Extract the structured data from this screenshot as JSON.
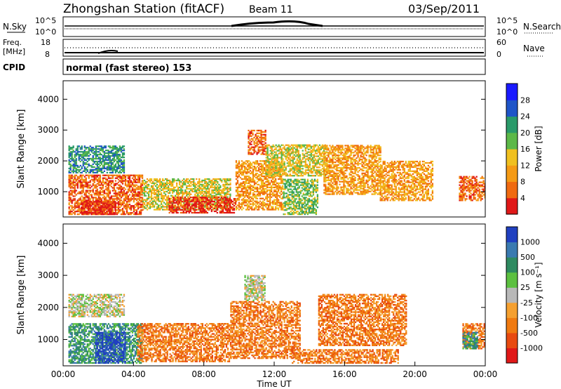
{
  "header": {
    "title": "Zhongshan Station (fitACF)",
    "beam": "Beam 11",
    "date": "03/Sep/2011"
  },
  "panels": {
    "nsky": {
      "label": "N.Sky",
      "right_label": "N.Search",
      "left_ticks": [
        "10^5",
        "10^0"
      ],
      "right_ticks": [
        "10^5",
        "10^0"
      ]
    },
    "freq": {
      "label": "Freq.",
      "unit": "[MHz]",
      "right_label": "Nave",
      "left_ticks": [
        "18",
        "8"
      ],
      "right_ticks": [
        "60",
        "0"
      ]
    },
    "cpid": {
      "label": "CPID",
      "text": "normal (fast stereo) 153"
    }
  },
  "chart_data": [
    {
      "type": "heatmap",
      "name": "power",
      "ylabel": "Slant Range [km]",
      "ylim": [
        180,
        4600
      ],
      "yticks": [
        "1000",
        "2000",
        "3000",
        "4000"
      ],
      "colorbar": {
        "label": "Power [dB]",
        "ticks": [
          "4",
          "8",
          "12",
          "16",
          "20",
          "24",
          "28"
        ],
        "colors": [
          "#1a1aff",
          "#1f55c8",
          "#2a9a6a",
          "#5cb848",
          "#f0c020",
          "#f59a15",
          "#f06a10",
          "#e01818"
        ]
      },
      "regions": [
        {
          "t0": 0.3,
          "t1": 4.5,
          "r0": 250,
          "r1": 1550,
          "level": 6
        },
        {
          "t0": 1.0,
          "t1": 3.0,
          "r0": 250,
          "r1": 700,
          "level": 7
        },
        {
          "t0": 4.5,
          "t1": 9.5,
          "r0": 400,
          "r1": 1400,
          "level": 4
        },
        {
          "t0": 6.0,
          "t1": 9.8,
          "r0": 300,
          "r1": 800,
          "level": 7
        },
        {
          "t0": 0.3,
          "t1": 3.5,
          "r0": 1600,
          "r1": 2500,
          "level": 2
        },
        {
          "t0": 9.8,
          "t1": 12.5,
          "r0": 400,
          "r1": 2000,
          "level": 5
        },
        {
          "t0": 11.5,
          "t1": 15.0,
          "r0": 1500,
          "r1": 2500,
          "level": 4
        },
        {
          "t0": 12.5,
          "t1": 14.5,
          "r0": 250,
          "r1": 1400,
          "level": 3
        },
        {
          "t0": 14.8,
          "t1": 18.0,
          "r0": 900,
          "r1": 2500,
          "level": 5
        },
        {
          "t0": 18.0,
          "t1": 21.0,
          "r0": 700,
          "r1": 2000,
          "level": 5
        },
        {
          "t0": 22.5,
          "t1": 24.0,
          "r0": 700,
          "r1": 1500,
          "level": 6
        },
        {
          "t0": 10.5,
          "t1": 11.5,
          "r0": 2200,
          "r1": 3000,
          "level": 6
        }
      ]
    },
    {
      "type": "heatmap",
      "name": "velocity",
      "ylabel": "Slant Range [km]",
      "xlabel": "Time UT",
      "ylim": [
        180,
        4600
      ],
      "yticks": [
        "1000",
        "2000",
        "3000",
        "4000"
      ],
      "xticks": [
        "00:00",
        "04:00",
        "08:00",
        "12:00",
        "16:00",
        "20:00",
        "00:00"
      ],
      "colorbar": {
        "label": "Velocity [m s⁻¹]",
        "ticks": [
          "1000",
          "500",
          "100",
          "25",
          "-25",
          "-100",
          "-500",
          "-1000"
        ],
        "colors": [
          "#2040c0",
          "#3a7ab0",
          "#2e8a60",
          "#5cc040",
          "#b8b8b8",
          "#f5a030",
          "#f07a10",
          "#e84a10",
          "#e01818"
        ]
      },
      "regions": [
        {
          "t0": 0.3,
          "t1": 4.5,
          "r0": 250,
          "r1": 1500,
          "level": 2
        },
        {
          "t0": 1.8,
          "t1": 3.5,
          "r0": 250,
          "r1": 1200,
          "level": 0
        },
        {
          "t0": 0.3,
          "t1": 3.5,
          "r0": 1700,
          "r1": 2400,
          "level": 4
        },
        {
          "t0": 4.2,
          "t1": 9.5,
          "r0": 300,
          "r1": 1500,
          "level": 6
        },
        {
          "t0": 9.5,
          "t1": 13.5,
          "r0": 400,
          "r1": 2200,
          "level": 6
        },
        {
          "t0": 10.3,
          "t1": 11.5,
          "r0": 2200,
          "r1": 3000,
          "level": 4
        },
        {
          "t0": 14.5,
          "t1": 19.5,
          "r0": 800,
          "r1": 2400,
          "level": 6
        },
        {
          "t0": 13.0,
          "t1": 19.0,
          "r0": 250,
          "r1": 700,
          "level": 6
        },
        {
          "t0": 22.7,
          "t1": 24.0,
          "r0": 700,
          "r1": 1500,
          "level": 6
        },
        {
          "t0": 22.7,
          "t1": 23.5,
          "r0": 700,
          "r1": 1200,
          "level": 2
        }
      ]
    }
  ]
}
